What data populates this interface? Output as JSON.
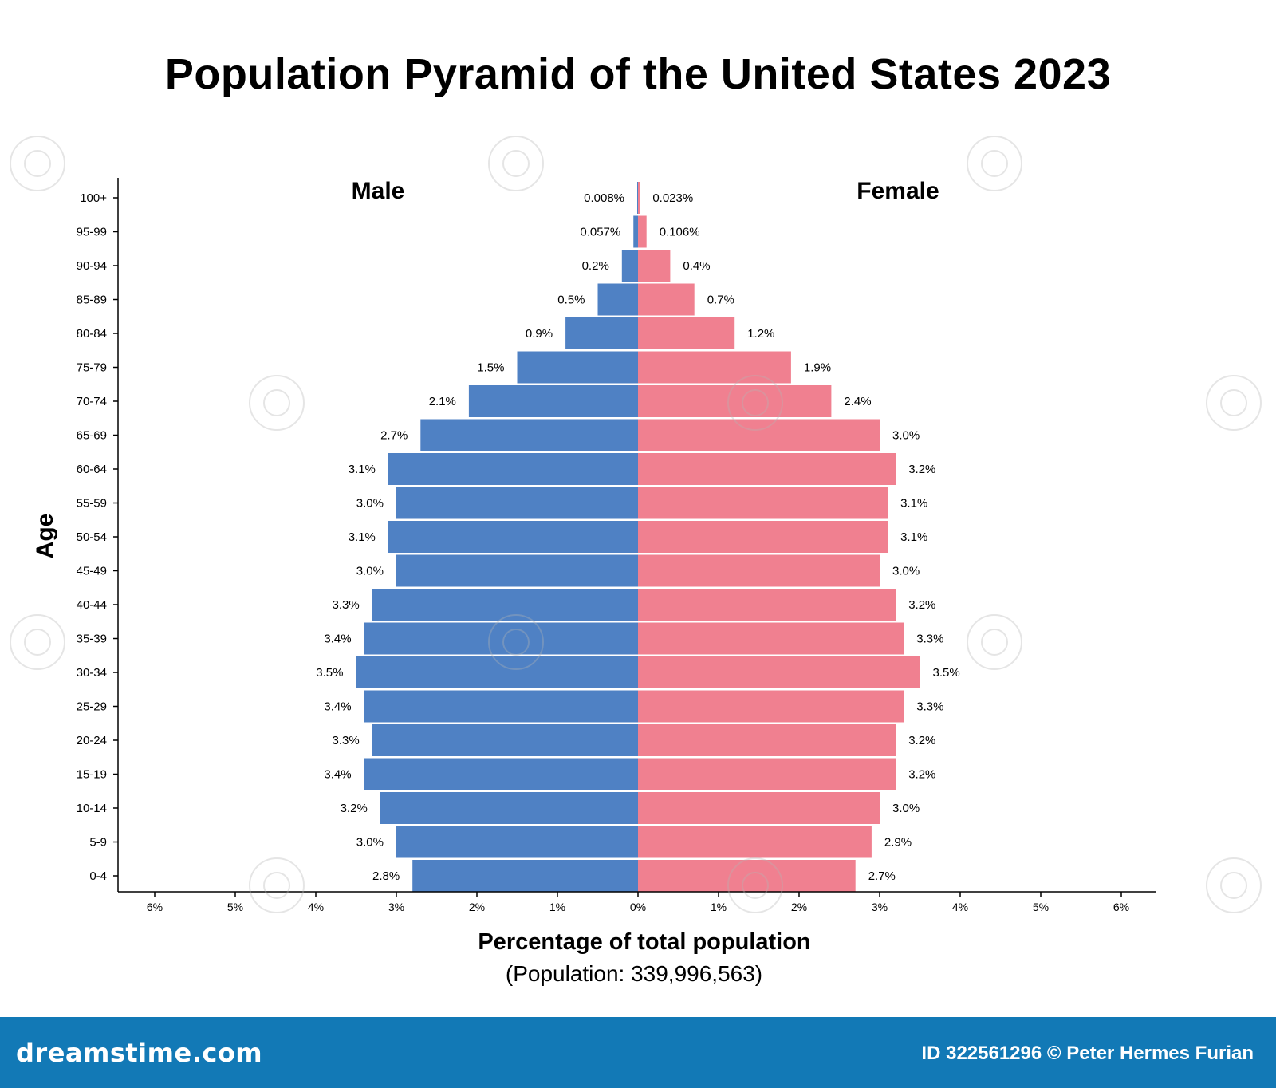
{
  "title": "Population Pyramid of the United States 2023",
  "footer": {
    "logo": "dreamstime.com",
    "credit": "ID 322561296 © Peter Hermes Furian"
  },
  "chart_data": {
    "type": "bar",
    "orientation": "horizontal",
    "layout": "population-pyramid",
    "title": "Population Pyramid of the United States 2023",
    "xlabel": "Percentage of total population",
    "xlabel_sub": "(Population: 339,996,563)",
    "ylabel": "Age",
    "xlim": [
      -6,
      6
    ],
    "x_ticks": [
      "6%",
      "5%",
      "4%",
      "3%",
      "2%",
      "1%",
      "0%",
      "1%",
      "2%",
      "3%",
      "4%",
      "5%",
      "6%"
    ],
    "grid": false,
    "categories": [
      "100+",
      "95-99",
      "90-94",
      "85-89",
      "80-84",
      "75-79",
      "70-74",
      "65-69",
      "60-64",
      "55-59",
      "50-54",
      "45-49",
      "40-44",
      "35-39",
      "30-34",
      "25-29",
      "20-24",
      "15-19",
      "10-14",
      "5-9",
      "0-4"
    ],
    "series": [
      {
        "name": "Male",
        "side": "left",
        "color": "#4f81c4",
        "values": [
          0.008,
          0.057,
          0.2,
          0.5,
          0.9,
          1.5,
          2.1,
          2.7,
          3.1,
          3.0,
          3.1,
          3.0,
          3.3,
          3.4,
          3.5,
          3.4,
          3.3,
          3.4,
          3.2,
          3.0,
          2.8
        ],
        "labels": [
          "0.008%",
          "0.057%",
          "0.2%",
          "0.5%",
          "0.9%",
          "1.5%",
          "2.1%",
          "2.7%",
          "3.1%",
          "3.0%",
          "3.1%",
          "3.0%",
          "3.3%",
          "3.4%",
          "3.5%",
          "3.4%",
          "3.3%",
          "3.4%",
          "3.2%",
          "3.0%",
          "2.8%"
        ]
      },
      {
        "name": "Female",
        "side": "right",
        "color": "#f08090",
        "values": [
          0.023,
          0.106,
          0.4,
          0.7,
          1.2,
          1.9,
          2.4,
          3.0,
          3.2,
          3.1,
          3.1,
          3.0,
          3.2,
          3.3,
          3.5,
          3.3,
          3.2,
          3.2,
          3.0,
          2.9,
          2.7
        ],
        "labels": [
          "0.023%",
          "0.106%",
          "0.4%",
          "0.7%",
          "1.2%",
          "1.9%",
          "2.4%",
          "3.0%",
          "3.2%",
          "3.1%",
          "3.1%",
          "3.0%",
          "3.2%",
          "3.3%",
          "3.5%",
          "3.3%",
          "3.2%",
          "3.2%",
          "3.0%",
          "2.9%",
          "2.7%"
        ]
      }
    ]
  }
}
